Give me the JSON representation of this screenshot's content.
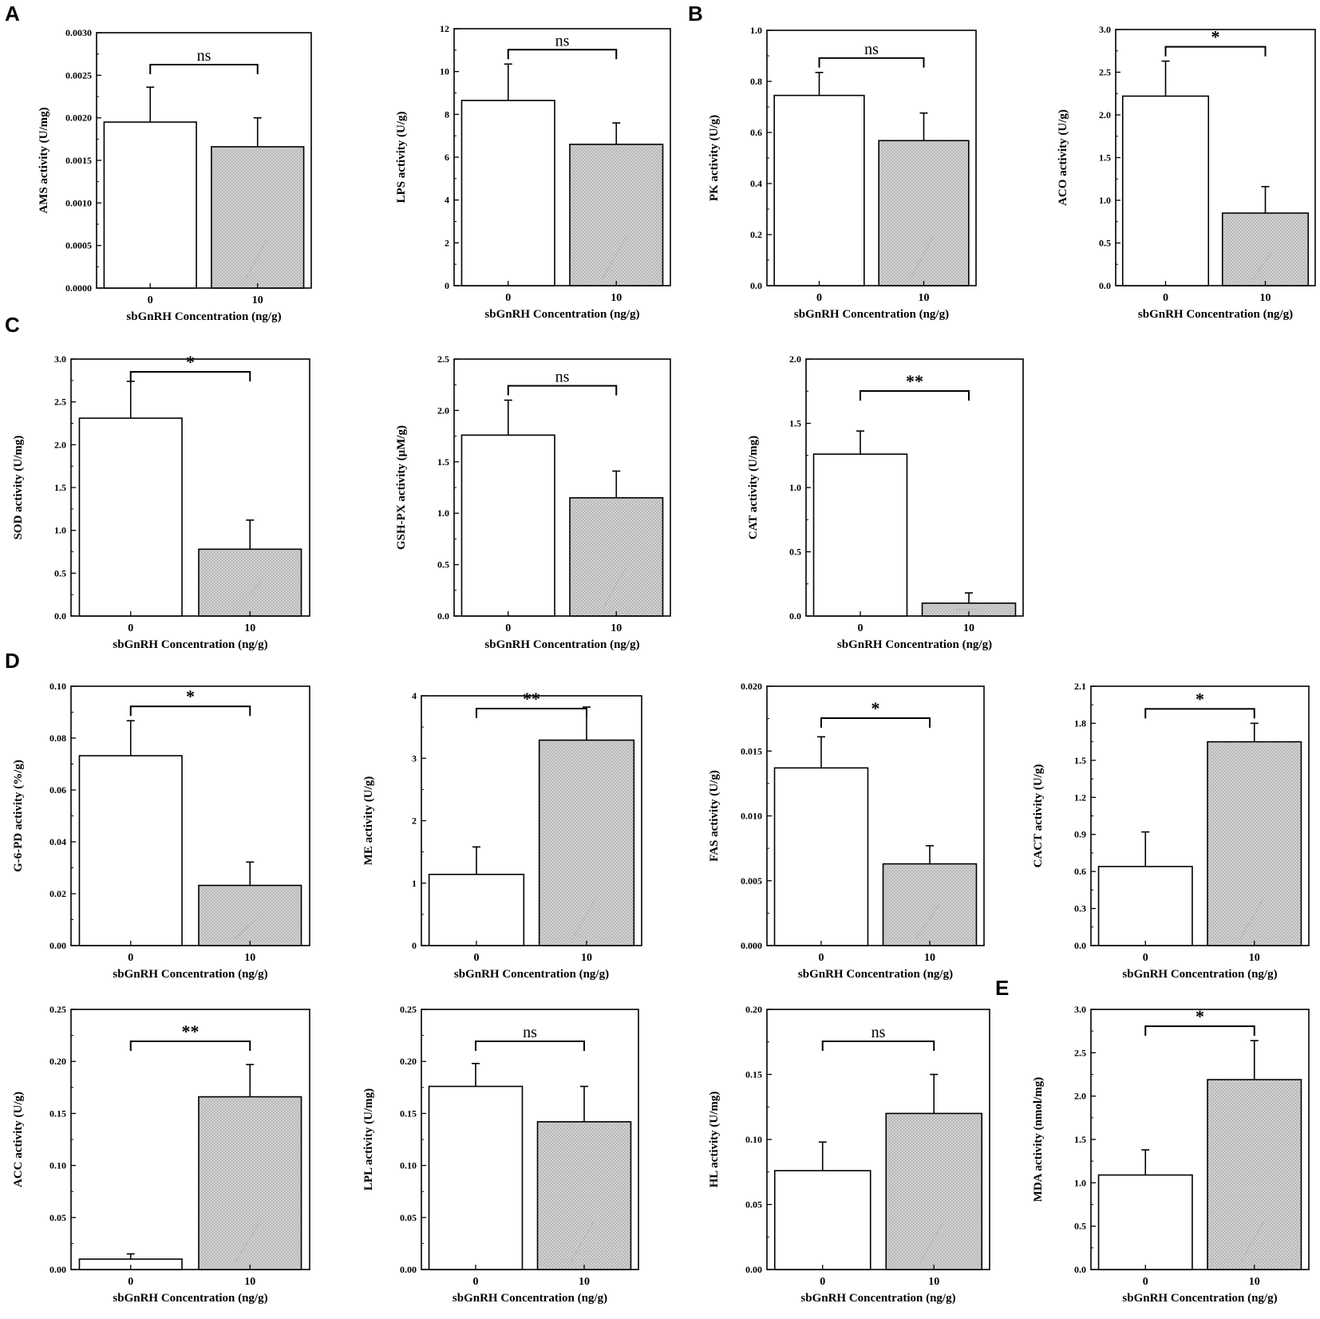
{
  "panel_letters": [
    "A",
    "B",
    "C",
    "D",
    "E"
  ],
  "colors": {
    "control_fill": "#ffffff",
    "treated_fill": "#c8c8c8",
    "stroke": "#000000",
    "hatch": "#b4b4b4"
  },
  "chart_data": [
    {
      "id": "ams",
      "type": "bar",
      "categories": [
        "0",
        "10"
      ],
      "values": [
        0.00195,
        0.00166
      ],
      "errors": [
        0.00041,
        0.00034
      ],
      "ylabel": "AMS activity (U/mg)",
      "xlabel": "sbGnRH Concentration (ng/g)",
      "ylim": [
        0,
        0.003
      ],
      "ticks": [
        "0.0000",
        "0.0005",
        "0.0010",
        "0.0015",
        "0.0020",
        "0.0025",
        "0.0030"
      ],
      "significance": "ns"
    },
    {
      "id": "lps",
      "type": "bar",
      "categories": [
        "0",
        "10"
      ],
      "values": [
        8.65,
        6.6
      ],
      "errors": [
        1.7,
        1.0
      ],
      "ylabel": "LPS activity (U/g)",
      "xlabel": "sbGnRH Concentration (ng/g)",
      "ylim": [
        0,
        12
      ],
      "ticks": [
        "0",
        "2",
        "4",
        "6",
        "8",
        "10",
        "12"
      ],
      "significance": "ns"
    },
    {
      "id": "pk",
      "type": "bar",
      "categories": [
        "0",
        "10"
      ],
      "values": [
        0.745,
        0.568
      ],
      "errors": [
        0.09,
        0.108
      ],
      "ylabel": "PK activity (U/g)",
      "xlabel": "sbGnRH Concentration (ng/g)",
      "ylim": [
        0,
        1.0
      ],
      "ticks": [
        "0.0",
        "0.2",
        "0.4",
        "0.6",
        "0.8",
        "1.0"
      ],
      "significance": "ns"
    },
    {
      "id": "aco",
      "type": "bar",
      "categories": [
        "0",
        "10"
      ],
      "values": [
        2.22,
        0.85
      ],
      "errors": [
        0.41,
        0.31
      ],
      "ylabel": "ACO activity (U/g)",
      "xlabel": "sbGnRH Concentration (ng/g)",
      "ylim": [
        0,
        3.0
      ],
      "ticks": [
        "0.0",
        "0.5",
        "1.0",
        "1.5",
        "2.0",
        "2.5",
        "3.0"
      ],
      "significance": "*"
    },
    {
      "id": "sod",
      "type": "bar",
      "categories": [
        "0",
        "10"
      ],
      "values": [
        2.31,
        0.78
      ],
      "errors": [
        0.43,
        0.34
      ],
      "ylabel": "SOD activity (U/mg)",
      "xlabel": "sbGnRH Concentration (ng/g)",
      "ylim": [
        0,
        3.0
      ],
      "ticks": [
        "0.0",
        "0.5",
        "1.0",
        "1.5",
        "2.0",
        "2.5",
        "3.0"
      ],
      "significance": "*"
    },
    {
      "id": "gshpx",
      "type": "bar",
      "categories": [
        "0",
        "10"
      ],
      "values": [
        1.76,
        1.15
      ],
      "errors": [
        0.34,
        0.26
      ],
      "ylabel": "GSH-PX activity (μM/g)",
      "xlabel": "sbGnRH Concentration (ng/g)",
      "ylim": [
        0,
        2.5
      ],
      "ticks": [
        "0.0",
        "0.5",
        "1.0",
        "1.5",
        "2.0",
        "2.5"
      ],
      "significance": "ns"
    },
    {
      "id": "cat",
      "type": "bar",
      "categories": [
        "0",
        "10"
      ],
      "values": [
        1.26,
        0.1
      ],
      "errors": [
        0.18,
        0.08
      ],
      "ylabel": "CAT activity (U/mg)",
      "xlabel": "sbGnRH Concentration (ng/g)",
      "ylim": [
        0,
        2.0
      ],
      "ticks": [
        "0.0",
        "0.5",
        "1.0",
        "1.5",
        "2.0"
      ],
      "significance": "**"
    },
    {
      "id": "g6pd",
      "type": "bar",
      "categories": [
        "0",
        "10"
      ],
      "values": [
        0.0732,
        0.0232
      ],
      "errors": [
        0.0135,
        0.009
      ],
      "ylabel": "G-6-PD activity (%/g)",
      "xlabel": "sbGnRH Concentration (ng/g)",
      "ylim": [
        0,
        0.1
      ],
      "ticks": [
        "0.00",
        "0.02",
        "0.04",
        "0.06",
        "0.08",
        "0.10"
      ],
      "significance": "*"
    },
    {
      "id": "me",
      "type": "bar",
      "categories": [
        "0",
        "10"
      ],
      "values": [
        1.14,
        3.29
      ],
      "errors": [
        0.44,
        0.53
      ],
      "ylabel": "ME activity (U/g)",
      "xlabel": "sbGnRH Concentration (ng/g)",
      "ylim": [
        0,
        4
      ],
      "ticks": [
        "0",
        "1",
        "2",
        "3",
        "4"
      ],
      "significance": "**"
    },
    {
      "id": "fas",
      "type": "bar",
      "categories": [
        "0",
        "10"
      ],
      "values": [
        0.0137,
        0.0063
      ],
      "errors": [
        0.0024,
        0.0014
      ],
      "ylabel": "FAS activity (U/g)",
      "xlabel": "sbGnRH Concentration (ng/g)",
      "ylim": [
        0,
        0.02
      ],
      "ticks": [
        "0.000",
        "0.005",
        "0.010",
        "0.015",
        "0.020"
      ],
      "significance": "*"
    },
    {
      "id": "cact",
      "type": "bar",
      "categories": [
        "0",
        "10"
      ],
      "values": [
        0.64,
        1.65
      ],
      "errors": [
        0.28,
        0.15
      ],
      "ylabel": "CACT activity (U/g)",
      "xlabel": "sbGnRH Concentration (ng/g)",
      "ylim": [
        0,
        2.1
      ],
      "ticks": [
        "0.0",
        "0.3",
        "0.6",
        "0.9",
        "1.2",
        "1.5",
        "1.8",
        "2.1"
      ],
      "significance": "*"
    },
    {
      "id": "acc",
      "type": "bar",
      "categories": [
        "0",
        "10"
      ],
      "values": [
        0.01,
        0.166
      ],
      "errors": [
        0.005,
        0.031
      ],
      "ylabel": "ACC activity (U/g)",
      "xlabel": "sbGnRH Concentration (ng/g)",
      "ylim": [
        0,
        0.25
      ],
      "ticks": [
        "0.00",
        "0.05",
        "0.10",
        "0.15",
        "0.20",
        "0.25"
      ],
      "significance": "**"
    },
    {
      "id": "lpl",
      "type": "bar",
      "categories": [
        "0",
        "10"
      ],
      "values": [
        0.176,
        0.142
      ],
      "errors": [
        0.022,
        0.034
      ],
      "ylabel": "LPL activity (U/mg)",
      "xlabel": "sbGnRH Concentration (ng/g)",
      "ylim": [
        0,
        0.25
      ],
      "ticks": [
        "0.00",
        "0.05",
        "0.10",
        "0.15",
        "0.20",
        "0.25"
      ],
      "significance": "ns"
    },
    {
      "id": "hl",
      "type": "bar",
      "categories": [
        "0",
        "10"
      ],
      "values": [
        0.076,
        0.12
      ],
      "errors": [
        0.022,
        0.03
      ],
      "ylabel": "HL activity (U/mg)",
      "xlabel": "sbGnRH Concentration (ng/g)",
      "ylim": [
        0,
        0.2
      ],
      "ticks": [
        "0.00",
        "0.05",
        "0.10",
        "0.15",
        "0.20"
      ],
      "significance": "ns"
    },
    {
      "id": "mda",
      "type": "bar",
      "categories": [
        "0",
        "10"
      ],
      "values": [
        1.09,
        2.19
      ],
      "errors": [
        0.29,
        0.45
      ],
      "ylabel": "MDA activity (nmol/mg)",
      "xlabel": "sbGnRH Concentration (ng/g)",
      "ylim": [
        0,
        3.0
      ],
      "ticks": [
        "0.0",
        "0.5",
        "1.0",
        "1.5",
        "2.0",
        "2.5",
        "3.0"
      ],
      "significance": "*"
    }
  ]
}
